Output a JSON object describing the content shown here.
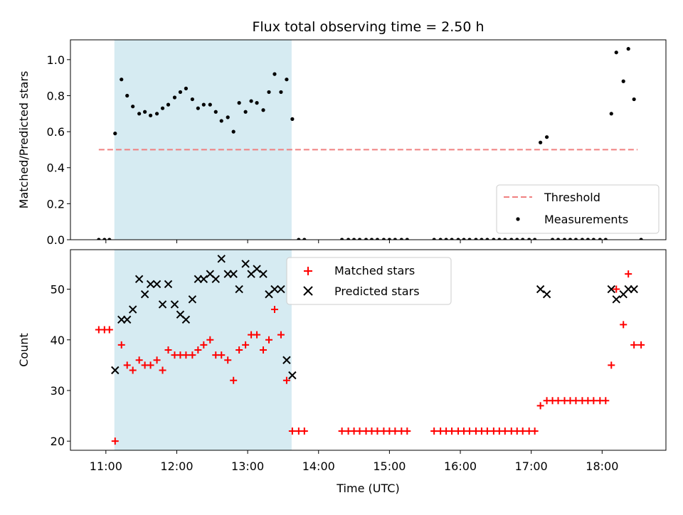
{
  "chart_data": [
    {
      "type": "scatter",
      "title": "Flux total observing time = 2.50 h",
      "xlabel": "",
      "ylabel": "Matched/Predicted stars",
      "xlim": [
        10.5,
        18.9
      ],
      "ylim": [
        0.0,
        1.11
      ],
      "yticks": [
        0.0,
        0.2,
        0.4,
        0.6,
        0.8,
        1.0
      ],
      "ytick_labels": [
        "0.0",
        "0.2",
        "0.4",
        "0.6",
        "0.8",
        "1.0"
      ],
      "legend_position": "lower-right",
      "shaded_interval": [
        11.12,
        13.62
      ],
      "threshold": {
        "name": "Threshold",
        "y": 0.5,
        "x": [
          10.9,
          18.5
        ],
        "color": "#f08080"
      },
      "series": [
        {
          "name": "Measurements",
          "color": "#000000",
          "points": [
            [
              10.9,
              0.0
            ],
            [
              10.98,
              0.0
            ],
            [
              11.05,
              0.0
            ],
            [
              11.13,
              0.59
            ],
            [
              11.22,
              0.89
            ],
            [
              11.3,
              0.8
            ],
            [
              11.38,
              0.74
            ],
            [
              11.47,
              0.7
            ],
            [
              11.55,
              0.71
            ],
            [
              11.63,
              0.69
            ],
            [
              11.72,
              0.7
            ],
            [
              11.8,
              0.73
            ],
            [
              11.88,
              0.75
            ],
            [
              11.97,
              0.79
            ],
            [
              12.05,
              0.82
            ],
            [
              12.13,
              0.84
            ],
            [
              12.22,
              0.78
            ],
            [
              12.3,
              0.73
            ],
            [
              12.38,
              0.75
            ],
            [
              12.47,
              0.75
            ],
            [
              12.55,
              0.71
            ],
            [
              12.63,
              0.66
            ],
            [
              12.72,
              0.68
            ],
            [
              12.8,
              0.6
            ],
            [
              12.88,
              0.76
            ],
            [
              12.97,
              0.71
            ],
            [
              13.05,
              0.77
            ],
            [
              13.13,
              0.76
            ],
            [
              13.22,
              0.72
            ],
            [
              13.3,
              0.82
            ],
            [
              13.38,
              0.92
            ],
            [
              13.47,
              0.82
            ],
            [
              13.55,
              0.89
            ],
            [
              13.63,
              0.67
            ],
            [
              13.72,
              0.0
            ],
            [
              13.8,
              0.0
            ],
            [
              14.33,
              0.0
            ],
            [
              14.42,
              0.0
            ],
            [
              14.5,
              0.0
            ],
            [
              14.58,
              0.0
            ],
            [
              14.67,
              0.0
            ],
            [
              14.75,
              0.0
            ],
            [
              14.83,
              0.0
            ],
            [
              14.92,
              0.0
            ],
            [
              15.0,
              0.0
            ],
            [
              15.08,
              0.0
            ],
            [
              15.17,
              0.0
            ],
            [
              15.25,
              0.0
            ],
            [
              15.63,
              0.0
            ],
            [
              15.72,
              0.0
            ],
            [
              15.8,
              0.0
            ],
            [
              15.88,
              0.0
            ],
            [
              15.97,
              0.0
            ],
            [
              16.05,
              0.0
            ],
            [
              16.13,
              0.0
            ],
            [
              16.22,
              0.0
            ],
            [
              16.3,
              0.0
            ],
            [
              16.38,
              0.0
            ],
            [
              16.47,
              0.0
            ],
            [
              16.55,
              0.0
            ],
            [
              16.63,
              0.0
            ],
            [
              16.72,
              0.0
            ],
            [
              16.8,
              0.0
            ],
            [
              16.88,
              0.0
            ],
            [
              16.97,
              0.0
            ],
            [
              17.05,
              0.0
            ],
            [
              17.13,
              0.54
            ],
            [
              17.22,
              0.57
            ],
            [
              17.3,
              0.0
            ],
            [
              17.38,
              0.0
            ],
            [
              17.47,
              0.0
            ],
            [
              17.55,
              0.0
            ],
            [
              17.63,
              0.0
            ],
            [
              17.72,
              0.0
            ],
            [
              17.8,
              0.0
            ],
            [
              17.88,
              0.0
            ],
            [
              17.97,
              0.0
            ],
            [
              18.05,
              0.0
            ],
            [
              18.13,
              0.7
            ],
            [
              18.2,
              1.04
            ],
            [
              18.3,
              0.88
            ],
            [
              18.37,
              1.06
            ],
            [
              18.45,
              0.78
            ],
            [
              18.55,
              0.0
            ]
          ]
        }
      ],
      "legend": [
        {
          "label": "Threshold",
          "kind": "dashed-line",
          "color": "#f08080"
        },
        {
          "label": "Measurements",
          "kind": "dot",
          "color": "#000000"
        }
      ]
    },
    {
      "type": "scatter",
      "title": "",
      "xlabel": "Time (UTC)",
      "ylabel": "Count",
      "xlim": [
        10.5,
        18.9
      ],
      "ylim": [
        18.2,
        57.8
      ],
      "xticks": [
        11,
        12,
        13,
        14,
        15,
        16,
        17,
        18
      ],
      "xtick_labels": [
        "11:00",
        "12:00",
        "13:00",
        "14:00",
        "15:00",
        "16:00",
        "17:00",
        "18:00"
      ],
      "yticks": [
        20,
        30,
        40,
        50
      ],
      "ytick_labels": [
        "20",
        "30",
        "40",
        "50"
      ],
      "legend_position": "upper-center",
      "shaded_interval": [
        11.12,
        13.62
      ],
      "series": [
        {
          "name": "Matched stars",
          "marker": "plus",
          "color": "#ff0000",
          "points": [
            [
              10.9,
              42
            ],
            [
              10.98,
              42
            ],
            [
              11.05,
              42
            ],
            [
              11.13,
              20
            ],
            [
              11.22,
              39
            ],
            [
              11.3,
              35
            ],
            [
              11.38,
              34
            ],
            [
              11.47,
              36
            ],
            [
              11.55,
              35
            ],
            [
              11.63,
              35
            ],
            [
              11.72,
              36
            ],
            [
              11.8,
              34
            ],
            [
              11.88,
              38
            ],
            [
              11.97,
              37
            ],
            [
              12.05,
              37
            ],
            [
              12.13,
              37
            ],
            [
              12.22,
              37
            ],
            [
              12.3,
              38
            ],
            [
              12.38,
              39
            ],
            [
              12.47,
              40
            ],
            [
              12.55,
              37
            ],
            [
              12.63,
              37
            ],
            [
              12.72,
              36
            ],
            [
              12.8,
              32
            ],
            [
              12.88,
              38
            ],
            [
              12.97,
              39
            ],
            [
              13.05,
              41
            ],
            [
              13.13,
              41
            ],
            [
              13.22,
              38
            ],
            [
              13.3,
              40
            ],
            [
              13.38,
              46
            ],
            [
              13.47,
              41
            ],
            [
              13.55,
              32
            ],
            [
              13.63,
              22
            ],
            [
              13.72,
              22
            ],
            [
              13.8,
              22
            ],
            [
              14.33,
              22
            ],
            [
              14.42,
              22
            ],
            [
              14.5,
              22
            ],
            [
              14.58,
              22
            ],
            [
              14.67,
              22
            ],
            [
              14.75,
              22
            ],
            [
              14.83,
              22
            ],
            [
              14.92,
              22
            ],
            [
              15.0,
              22
            ],
            [
              15.08,
              22
            ],
            [
              15.17,
              22
            ],
            [
              15.25,
              22
            ],
            [
              15.63,
              22
            ],
            [
              15.72,
              22
            ],
            [
              15.8,
              22
            ],
            [
              15.88,
              22
            ],
            [
              15.97,
              22
            ],
            [
              16.05,
              22
            ],
            [
              16.13,
              22
            ],
            [
              16.22,
              22
            ],
            [
              16.3,
              22
            ],
            [
              16.38,
              22
            ],
            [
              16.47,
              22
            ],
            [
              16.55,
              22
            ],
            [
              16.63,
              22
            ],
            [
              16.72,
              22
            ],
            [
              16.8,
              22
            ],
            [
              16.88,
              22
            ],
            [
              16.97,
              22
            ],
            [
              17.05,
              22
            ],
            [
              17.13,
              27
            ],
            [
              17.22,
              28
            ],
            [
              17.3,
              28
            ],
            [
              17.38,
              28
            ],
            [
              17.47,
              28
            ],
            [
              17.55,
              28
            ],
            [
              17.63,
              28
            ],
            [
              17.72,
              28
            ],
            [
              17.8,
              28
            ],
            [
              17.88,
              28
            ],
            [
              17.97,
              28
            ],
            [
              18.05,
              28
            ],
            [
              18.13,
              35
            ],
            [
              18.2,
              50
            ],
            [
              18.3,
              43
            ],
            [
              18.37,
              53
            ],
            [
              18.45,
              39
            ],
            [
              18.55,
              39
            ]
          ]
        },
        {
          "name": "Predicted stars",
          "marker": "cross",
          "color": "#000000",
          "points": [
            [
              11.13,
              34
            ],
            [
              11.22,
              44
            ],
            [
              11.3,
              44
            ],
            [
              11.38,
              46
            ],
            [
              11.47,
              52
            ],
            [
              11.55,
              49
            ],
            [
              11.63,
              51
            ],
            [
              11.72,
              51
            ],
            [
              11.8,
              47
            ],
            [
              11.88,
              51
            ],
            [
              11.97,
              47
            ],
            [
              12.05,
              45
            ],
            [
              12.13,
              44
            ],
            [
              12.22,
              48
            ],
            [
              12.3,
              52
            ],
            [
              12.38,
              52
            ],
            [
              12.47,
              53
            ],
            [
              12.55,
              52
            ],
            [
              12.63,
              56
            ],
            [
              12.72,
              53
            ],
            [
              12.8,
              53
            ],
            [
              12.88,
              50
            ],
            [
              12.97,
              55
            ],
            [
              13.05,
              53
            ],
            [
              13.13,
              54
            ],
            [
              13.22,
              53
            ],
            [
              13.3,
              49
            ],
            [
              13.38,
              50
            ],
            [
              13.47,
              50
            ],
            [
              13.55,
              36
            ],
            [
              13.63,
              33
            ],
            [
              17.13,
              50
            ],
            [
              17.22,
              49
            ],
            [
              18.13,
              50
            ],
            [
              18.2,
              48
            ],
            [
              18.3,
              49
            ],
            [
              18.37,
              50
            ],
            [
              18.45,
              50
            ]
          ]
        }
      ]
    }
  ]
}
